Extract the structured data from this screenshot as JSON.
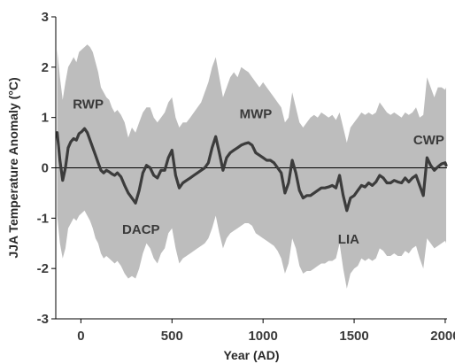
{
  "chart_data": {
    "type": "line",
    "xlabel": "Year (AD)",
    "ylabel": "JJA Temperature Anomaly (°C)",
    "xlim": [
      -138,
      2010
    ],
    "ylim": [
      -3,
      3
    ],
    "x_ticks": [
      0,
      500,
      1000,
      1500,
      2000
    ],
    "x_tick_labels": [
      "0",
      "500",
      "1000",
      "1500",
      "2000"
    ],
    "y_ticks": [
      -3,
      -2,
      -1,
      0,
      1,
      2,
      3
    ],
    "y_tick_labels": [
      "-3",
      "-2",
      "-1",
      "0",
      "1",
      "2",
      "3"
    ],
    "reference_line_y": 0,
    "colors": {
      "mean": "#3c3c3c",
      "band": "#bdbdbd",
      "axis": "#000000"
    },
    "annotations": [
      {
        "text": "RWP",
        "x": 40,
        "y": 1.27
      },
      {
        "text": "DACP",
        "x": 330,
        "y": -1.22
      },
      {
        "text": "MWP",
        "x": 960,
        "y": 1.07
      },
      {
        "text": "LIA",
        "x": 1470,
        "y": -1.42
      },
      {
        "text": "CWP",
        "x": 1910,
        "y": 0.55
      }
    ],
    "series": [
      {
        "x": [
          -130,
          -115,
          -100,
          -85,
          -70,
          -55,
          -40,
          -25,
          -10,
          5,
          20,
          35,
          50,
          65,
          80,
          95,
          110,
          125,
          140,
          155,
          170,
          185,
          200,
          220,
          240,
          260,
          280,
          300,
          320,
          340,
          360,
          380,
          400,
          420,
          440,
          460,
          480,
          500,
          520,
          540,
          560,
          580,
          600,
          620,
          640,
          660,
          680,
          700,
          720,
          740,
          760,
          780,
          800,
          820,
          840,
          860,
          880,
          900,
          920,
          940,
          960,
          980,
          1000,
          1020,
          1040,
          1060,
          1080,
          1100,
          1120,
          1140,
          1160,
          1180,
          1200,
          1220,
          1240,
          1260,
          1280,
          1300,
          1320,
          1340,
          1360,
          1380,
          1400,
          1420,
          1440,
          1460,
          1480,
          1500,
          1520,
          1540,
          1560,
          1580,
          1600,
          1620,
          1640,
          1660,
          1680,
          1700,
          1720,
          1740,
          1760,
          1780,
          1800,
          1820,
          1840,
          1860,
          1880,
          1900,
          1920,
          1940,
          1960,
          1980,
          2000,
          2005
        ],
        "values": [
          0.7,
          0.15,
          -0.25,
          0.0,
          0.4,
          0.52,
          0.58,
          0.55,
          0.68,
          0.72,
          0.78,
          0.7,
          0.55,
          0.4,
          0.25,
          0.1,
          -0.05,
          -0.1,
          -0.05,
          -0.08,
          -0.12,
          -0.15,
          -0.1,
          -0.18,
          -0.35,
          -0.5,
          -0.6,
          -0.7,
          -0.45,
          -0.1,
          0.05,
          0.0,
          -0.15,
          -0.2,
          -0.05,
          -0.05,
          0.2,
          0.35,
          -0.15,
          -0.4,
          -0.3,
          -0.25,
          -0.2,
          -0.15,
          -0.1,
          -0.05,
          0.0,
          0.1,
          0.4,
          0.62,
          0.3,
          -0.05,
          0.2,
          0.3,
          0.35,
          0.4,
          0.45,
          0.48,
          0.5,
          0.45,
          0.3,
          0.25,
          0.2,
          0.15,
          0.15,
          0.1,
          0.0,
          -0.1,
          -0.5,
          -0.3,
          0.15,
          -0.1,
          -0.45,
          -0.6,
          -0.55,
          -0.55,
          -0.5,
          -0.45,
          -0.4,
          -0.4,
          -0.38,
          -0.35,
          -0.4,
          -0.15,
          -0.55,
          -0.85,
          -0.6,
          -0.55,
          -0.45,
          -0.35,
          -0.38,
          -0.3,
          -0.35,
          -0.28,
          -0.15,
          -0.2,
          -0.3,
          -0.3,
          -0.25,
          -0.28,
          -0.3,
          -0.2,
          -0.28,
          -0.2,
          -0.15,
          -0.35,
          -0.55,
          0.2,
          0.05,
          -0.05,
          0.02,
          0.08,
          0.1,
          0.05
        ]
      },
      {
        "x": [
          -130,
          -115,
          -100,
          -85,
          -70,
          -55,
          -40,
          -25,
          -10,
          5,
          20,
          35,
          50,
          65,
          80,
          95,
          110,
          125,
          140,
          155,
          170,
          185,
          200,
          220,
          240,
          260,
          280,
          300,
          320,
          340,
          360,
          380,
          400,
          420,
          440,
          460,
          480,
          500,
          520,
          540,
          560,
          580,
          600,
          620,
          640,
          660,
          680,
          700,
          720,
          740,
          760,
          780,
          800,
          820,
          840,
          860,
          880,
          900,
          920,
          940,
          960,
          980,
          1000,
          1020,
          1040,
          1060,
          1080,
          1100,
          1120,
          1140,
          1160,
          1180,
          1200,
          1220,
          1240,
          1260,
          1280,
          1300,
          1320,
          1340,
          1360,
          1380,
          1400,
          1420,
          1440,
          1460,
          1480,
          1500,
          1520,
          1540,
          1560,
          1580,
          1600,
          1620,
          1640,
          1660,
          1680,
          1700,
          1720,
          1740,
          1760,
          1780,
          1800,
          1820,
          1840,
          1860,
          1880,
          1900,
          1920,
          1940,
          1960,
          1980,
          2000,
          2005
        ],
        "values": [
          2.35,
          1.8,
          1.35,
          1.7,
          2.0,
          2.1,
          2.2,
          2.1,
          2.3,
          2.35,
          2.4,
          2.45,
          2.4,
          2.3,
          2.1,
          1.9,
          1.6,
          1.5,
          1.4,
          1.35,
          1.2,
          1.1,
          1.15,
          1.05,
          0.9,
          0.6,
          0.8,
          0.7,
          0.9,
          1.1,
          1.2,
          1.2,
          1.0,
          0.9,
          1.0,
          1.1,
          1.3,
          1.4,
          1.0,
          0.8,
          0.9,
          0.9,
          1.0,
          1.1,
          1.2,
          1.3,
          1.5,
          1.7,
          2.0,
          2.2,
          1.8,
          1.4,
          1.6,
          1.8,
          1.9,
          1.8,
          2.0,
          1.95,
          1.9,
          1.8,
          1.7,
          1.6,
          1.7,
          1.6,
          1.5,
          1.4,
          1.3,
          1.2,
          0.9,
          1.0,
          1.5,
          1.2,
          0.9,
          0.8,
          0.9,
          1.0,
          1.05,
          1.0,
          1.1,
          1.05,
          1.0,
          1.05,
          0.95,
          1.1,
          0.8,
          0.5,
          0.8,
          0.9,
          1.0,
          1.1,
          1.05,
          1.1,
          1.05,
          1.1,
          1.3,
          1.2,
          1.1,
          1.05,
          1.1,
          1.05,
          1.0,
          1.1,
          1.05,
          1.1,
          1.2,
          1.0,
          1.05,
          1.8,
          1.6,
          1.4,
          1.6,
          1.6,
          1.55,
          1.6
        ]
      },
      {
        "x": [
          -130,
          -115,
          -100,
          -85,
          -70,
          -55,
          -40,
          -25,
          -10,
          5,
          20,
          35,
          50,
          65,
          80,
          95,
          110,
          125,
          140,
          155,
          170,
          185,
          200,
          220,
          240,
          260,
          280,
          300,
          320,
          340,
          360,
          380,
          400,
          420,
          440,
          460,
          480,
          500,
          520,
          540,
          560,
          580,
          600,
          620,
          640,
          660,
          680,
          700,
          720,
          740,
          760,
          780,
          800,
          820,
          840,
          860,
          880,
          900,
          920,
          940,
          960,
          980,
          1000,
          1020,
          1040,
          1060,
          1080,
          1100,
          1120,
          1140,
          1160,
          1180,
          1200,
          1220,
          1240,
          1260,
          1280,
          1300,
          1320,
          1340,
          1360,
          1380,
          1400,
          1420,
          1440,
          1460,
          1480,
          1500,
          1520,
          1540,
          1560,
          1580,
          1600,
          1620,
          1640,
          1660,
          1680,
          1700,
          1720,
          1740,
          1760,
          1780,
          1800,
          1820,
          1840,
          1860,
          1880,
          1900,
          1920,
          1940,
          1960,
          1980,
          2000,
          2005
        ],
        "values": [
          -0.95,
          -1.5,
          -1.8,
          -1.6,
          -1.2,
          -1.1,
          -1.0,
          -1.05,
          -0.95,
          -0.9,
          -0.85,
          -0.95,
          -1.05,
          -1.2,
          -1.4,
          -1.5,
          -1.7,
          -1.8,
          -1.75,
          -1.8,
          -1.85,
          -1.9,
          -1.85,
          -1.95,
          -2.1,
          -2.2,
          -2.15,
          -2.2,
          -2.0,
          -1.7,
          -1.5,
          -1.6,
          -1.8,
          -1.9,
          -1.7,
          -1.6,
          -1.3,
          -1.2,
          -1.6,
          -1.9,
          -1.8,
          -1.75,
          -1.7,
          -1.65,
          -1.6,
          -1.55,
          -1.5,
          -1.4,
          -1.2,
          -0.95,
          -1.3,
          -1.6,
          -1.4,
          -1.3,
          -1.25,
          -1.2,
          -1.15,
          -1.1,
          -1.1,
          -1.15,
          -1.3,
          -1.35,
          -1.4,
          -1.45,
          -1.5,
          -1.55,
          -1.65,
          -1.8,
          -2.1,
          -1.9,
          -1.4,
          -1.6,
          -1.95,
          -2.1,
          -2.05,
          -2.05,
          -2.0,
          -1.95,
          -1.9,
          -1.9,
          -1.85,
          -1.85,
          -1.8,
          -1.5,
          -2.0,
          -2.4,
          -2.1,
          -2.0,
          -1.95,
          -1.8,
          -1.85,
          -1.8,
          -1.85,
          -1.8,
          -1.6,
          -1.65,
          -1.75,
          -1.75,
          -1.7,
          -1.75,
          -1.75,
          -1.65,
          -1.7,
          -1.6,
          -1.55,
          -1.8,
          -2.0,
          -1.4,
          -1.5,
          -1.6,
          -1.55,
          -1.5,
          -1.45,
          -1.5
        ]
      }
    ]
  }
}
